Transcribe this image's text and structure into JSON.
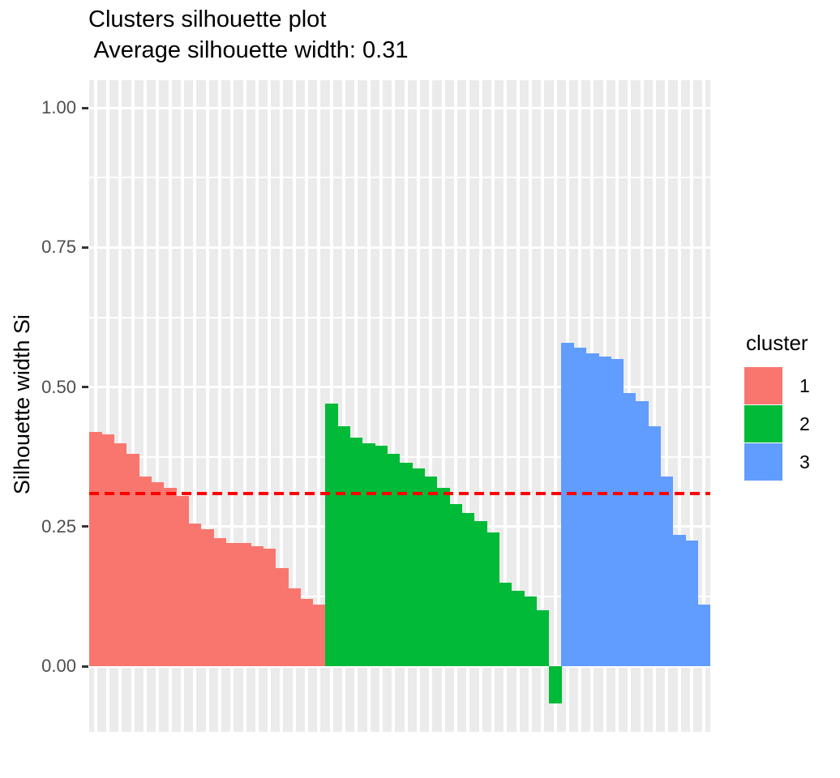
{
  "title": "Clusters silhouette plot",
  "subtitle": " Average silhouette width: 0.31",
  "y_axis": {
    "title": "Silhouette width Si",
    "tick_labels": [
      "0.00",
      "0.25",
      "0.50",
      "0.75",
      "1.00"
    ],
    "tick_values": [
      0.0,
      0.25,
      0.5,
      0.75,
      1.0
    ]
  },
  "legend": {
    "title": "cluster",
    "items": [
      {
        "label": "1",
        "color": "#F8766D"
      },
      {
        "label": "2",
        "color": "#00BA38"
      },
      {
        "label": "3",
        "color": "#619CFF"
      }
    ]
  },
  "colors": {
    "panel_bg": "#EBEBEB",
    "grid": "#FFFFFF",
    "avg_line": "#FF0000",
    "axis_text": "#4D4D4D",
    "tick_mark": "#333333"
  },
  "chart_data": {
    "type": "bar",
    "title": "Clusters silhouette plot",
    "subtitle": "Average silhouette width: 0.31",
    "ylabel": "Silhouette width Si",
    "ylim": [
      -0.12,
      1.05
    ],
    "yticks": [
      0.0,
      0.25,
      0.5,
      0.75,
      1.0
    ],
    "grid": true,
    "legend_position": "right",
    "average_silhouette_width": 0.31,
    "reference_line": {
      "value": 0.31,
      "style": "dashed",
      "color": "#FF0000"
    },
    "n_observations": 50,
    "series": [
      {
        "name": "1",
        "color": "#F8766D",
        "size": 19,
        "values": [
          0.42,
          0.415,
          0.4,
          0.38,
          0.34,
          0.33,
          0.32,
          0.305,
          0.255,
          0.245,
          0.23,
          0.22,
          0.22,
          0.215,
          0.21,
          0.175,
          0.14,
          0.12,
          0.11
        ]
      },
      {
        "name": "2",
        "color": "#00BA38",
        "size": 19,
        "values": [
          0.47,
          0.43,
          0.41,
          0.4,
          0.395,
          0.38,
          0.365,
          0.355,
          0.34,
          0.32,
          0.29,
          0.275,
          0.26,
          0.24,
          0.15,
          0.135,
          0.125,
          0.1,
          -0.067
        ]
      },
      {
        "name": "3",
        "color": "#619CFF",
        "size": 12,
        "values": [
          0.58,
          0.57,
          0.56,
          0.555,
          0.55,
          0.49,
          0.475,
          0.43,
          0.34,
          0.235,
          0.225,
          0.11
        ]
      }
    ]
  }
}
